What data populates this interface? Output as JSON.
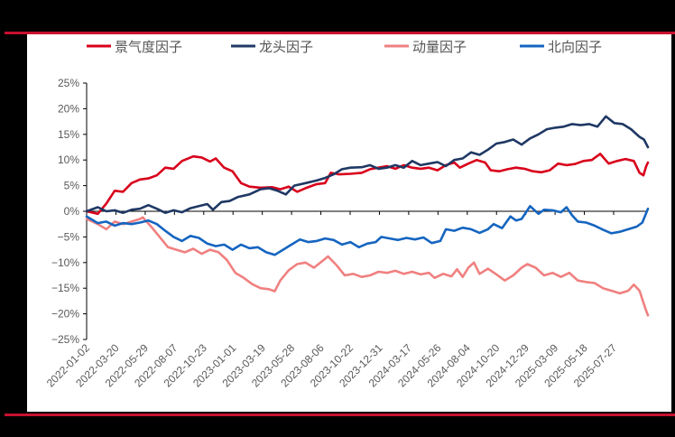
{
  "chart_data": {
    "type": "line",
    "title": "",
    "xlabel": "",
    "ylabel": "",
    "ylim": [
      -25,
      25
    ],
    "yticks": [
      "25%",
      "20%",
      "15%",
      "10%",
      "5%",
      "0%",
      "-5%",
      "-10%",
      "-15%",
      "-20%",
      "-25%"
    ],
    "xticks": [
      "2022-01-02",
      "2022-03-20",
      "2022-05-29",
      "2022-08-07",
      "2022-10-23",
      "2023-01-01",
      "2023-03-19",
      "2023-05-28",
      "2023-08-06",
      "2023-10-22",
      "2023-12-31",
      "2024-03-17",
      "2024-05-26",
      "2024-08-04",
      "2024-10-20",
      "2024-12-29",
      "2025-03-09",
      "2025-05-18",
      "2025-07-27"
    ],
    "legend_position": "top",
    "grid": false,
    "series": [
      {
        "name": "景气度因子",
        "color": "#d9001b",
        "points": [
          [
            0,
            0
          ],
          [
            0.02,
            -0.5
          ],
          [
            0.035,
            1.5
          ],
          [
            0.05,
            4
          ],
          [
            0.065,
            3.8
          ],
          [
            0.08,
            5.5
          ],
          [
            0.095,
            6.2
          ],
          [
            0.11,
            6.4
          ],
          [
            0.125,
            7
          ],
          [
            0.14,
            8.5
          ],
          [
            0.155,
            8.3
          ],
          [
            0.17,
            9.8
          ],
          [
            0.19,
            10.7
          ],
          [
            0.205,
            10.5
          ],
          [
            0.22,
            9.7
          ],
          [
            0.23,
            10.3
          ],
          [
            0.245,
            8.5
          ],
          [
            0.26,
            7.8
          ],
          [
            0.275,
            5.5
          ],
          [
            0.29,
            4.8
          ],
          [
            0.31,
            4.6
          ],
          [
            0.33,
            4.7
          ],
          [
            0.345,
            4.3
          ],
          [
            0.36,
            4.8
          ],
          [
            0.375,
            3.8
          ],
          [
            0.39,
            4.5
          ],
          [
            0.41,
            5.3
          ],
          [
            0.425,
            5.5
          ],
          [
            0.435,
            7.5
          ],
          [
            0.45,
            7.2
          ],
          [
            0.47,
            7.3
          ],
          [
            0.49,
            7.5
          ],
          [
            0.505,
            8.2
          ],
          [
            0.52,
            8.5
          ],
          [
            0.535,
            8.8
          ],
          [
            0.55,
            8.3
          ],
          [
            0.565,
            9
          ],
          [
            0.58,
            8.5
          ],
          [
            0.595,
            8.3
          ],
          [
            0.61,
            8.5
          ],
          [
            0.625,
            8
          ],
          [
            0.64,
            9
          ],
          [
            0.655,
            9.5
          ],
          [
            0.665,
            8.5
          ],
          [
            0.68,
            9.3
          ],
          [
            0.695,
            10
          ],
          [
            0.71,
            9.5
          ],
          [
            0.72,
            8
          ],
          [
            0.735,
            7.8
          ],
          [
            0.75,
            8.2
          ],
          [
            0.765,
            8.5
          ],
          [
            0.78,
            8.3
          ],
          [
            0.795,
            7.8
          ],
          [
            0.81,
            7.6
          ],
          [
            0.825,
            8
          ],
          [
            0.84,
            9.3
          ],
          [
            0.855,
            9
          ],
          [
            0.87,
            9.2
          ],
          [
            0.885,
            9.8
          ],
          [
            0.9,
            10
          ],
          [
            0.915,
            11.2
          ],
          [
            0.93,
            9.3
          ],
          [
            0.945,
            9.8
          ],
          [
            0.96,
            10.2
          ],
          [
            0.975,
            9.8
          ],
          [
            0.985,
            7.5
          ],
          [
            0.992,
            7
          ],
          [
            0.997,
            8.8
          ],
          [
            1,
            9.5
          ]
        ]
      },
      {
        "name": "龙头因子",
        "color": "#1f3864",
        "points": [
          [
            0,
            0
          ],
          [
            0.02,
            0.8
          ],
          [
            0.035,
            0
          ],
          [
            0.05,
            0.2
          ],
          [
            0.065,
            -0.3
          ],
          [
            0.08,
            0.3
          ],
          [
            0.095,
            0.5
          ],
          [
            0.11,
            1.2
          ],
          [
            0.125,
            0.5
          ],
          [
            0.14,
            -0.3
          ],
          [
            0.155,
            0.2
          ],
          [
            0.17,
            -0.2
          ],
          [
            0.185,
            0.6
          ],
          [
            0.2,
            1
          ],
          [
            0.215,
            1.4
          ],
          [
            0.225,
            0.3
          ],
          [
            0.24,
            1.8
          ],
          [
            0.255,
            2
          ],
          [
            0.27,
            2.8
          ],
          [
            0.29,
            3.3
          ],
          [
            0.31,
            4.3
          ],
          [
            0.325,
            4.5
          ],
          [
            0.34,
            4
          ],
          [
            0.355,
            3.3
          ],
          [
            0.37,
            5
          ],
          [
            0.39,
            5.5
          ],
          [
            0.41,
            6
          ],
          [
            0.425,
            6.5
          ],
          [
            0.44,
            7.2
          ],
          [
            0.455,
            8.2
          ],
          [
            0.47,
            8.5
          ],
          [
            0.49,
            8.6
          ],
          [
            0.505,
            9
          ],
          [
            0.52,
            8.3
          ],
          [
            0.535,
            8.5
          ],
          [
            0.55,
            9
          ],
          [
            0.565,
            8.5
          ],
          [
            0.58,
            9.8
          ],
          [
            0.595,
            9
          ],
          [
            0.61,
            9.3
          ],
          [
            0.625,
            9.6
          ],
          [
            0.64,
            8.8
          ],
          [
            0.655,
            10
          ],
          [
            0.67,
            10.3
          ],
          [
            0.685,
            11.5
          ],
          [
            0.7,
            11
          ],
          [
            0.715,
            12
          ],
          [
            0.73,
            13.2
          ],
          [
            0.745,
            13.5
          ],
          [
            0.76,
            14
          ],
          [
            0.775,
            13
          ],
          [
            0.79,
            14.2
          ],
          [
            0.805,
            15
          ],
          [
            0.82,
            16
          ],
          [
            0.835,
            16.3
          ],
          [
            0.85,
            16.5
          ],
          [
            0.865,
            17
          ],
          [
            0.88,
            16.8
          ],
          [
            0.895,
            17
          ],
          [
            0.91,
            16.5
          ],
          [
            0.925,
            18.5
          ],
          [
            0.94,
            17.2
          ],
          [
            0.955,
            17
          ],
          [
            0.97,
            16
          ],
          [
            0.985,
            14.5
          ],
          [
            0.993,
            14
          ],
          [
            1,
            12.5
          ]
        ]
      },
      {
        "name": "动量因子",
        "color": "#f08080",
        "points": [
          [
            0,
            -1.5
          ],
          [
            0.02,
            -2.5
          ],
          [
            0.035,
            -3.5
          ],
          [
            0.05,
            -2
          ],
          [
            0.065,
            -2.5
          ],
          [
            0.08,
            -2
          ],
          [
            0.095,
            -1.5
          ],
          [
            0.1,
            -1.2
          ],
          [
            0.115,
            -3
          ],
          [
            0.13,
            -5
          ],
          [
            0.145,
            -7
          ],
          [
            0.16,
            -7.5
          ],
          [
            0.175,
            -8
          ],
          [
            0.19,
            -7.3
          ],
          [
            0.205,
            -8.3
          ],
          [
            0.22,
            -7.5
          ],
          [
            0.235,
            -8
          ],
          [
            0.25,
            -9.5
          ],
          [
            0.265,
            -12
          ],
          [
            0.28,
            -13
          ],
          [
            0.295,
            -14.2
          ],
          [
            0.31,
            -15
          ],
          [
            0.325,
            -15.2
          ],
          [
            0.335,
            -15.6
          ],
          [
            0.345,
            -13.5
          ],
          [
            0.36,
            -11.5
          ],
          [
            0.375,
            -10.3
          ],
          [
            0.39,
            -10
          ],
          [
            0.405,
            -11
          ],
          [
            0.42,
            -9.7
          ],
          [
            0.43,
            -8.8
          ],
          [
            0.445,
            -10.5
          ],
          [
            0.46,
            -12.5
          ],
          [
            0.475,
            -12.2
          ],
          [
            0.49,
            -12.8
          ],
          [
            0.505,
            -12.5
          ],
          [
            0.52,
            -11.8
          ],
          [
            0.535,
            -12
          ],
          [
            0.55,
            -11.6
          ],
          [
            0.565,
            -12.2
          ],
          [
            0.58,
            -11.8
          ],
          [
            0.595,
            -12.3
          ],
          [
            0.61,
            -12
          ],
          [
            0.62,
            -13
          ],
          [
            0.635,
            -12.2
          ],
          [
            0.65,
            -12.7
          ],
          [
            0.66,
            -11.3
          ],
          [
            0.67,
            -12.8
          ],
          [
            0.68,
            -11
          ],
          [
            0.69,
            -10
          ],
          [
            0.7,
            -12.2
          ],
          [
            0.715,
            -11.2
          ],
          [
            0.73,
            -12.3
          ],
          [
            0.745,
            -13.5
          ],
          [
            0.76,
            -12.5
          ],
          [
            0.775,
            -11
          ],
          [
            0.785,
            -10.3
          ],
          [
            0.8,
            -11
          ],
          [
            0.815,
            -12.5
          ],
          [
            0.83,
            -12
          ],
          [
            0.845,
            -12.8
          ],
          [
            0.86,
            -12
          ],
          [
            0.875,
            -13.5
          ],
          [
            0.89,
            -13.8
          ],
          [
            0.905,
            -14
          ],
          [
            0.92,
            -15
          ],
          [
            0.935,
            -15.5
          ],
          [
            0.95,
            -16
          ],
          [
            0.965,
            -15.5
          ],
          [
            0.975,
            -14.3
          ],
          [
            0.985,
            -15.5
          ],
          [
            0.995,
            -18.8
          ],
          [
            1,
            -20.3
          ]
        ]
      },
      {
        "name": "北向因子",
        "color": "#1565c0",
        "points": [
          [
            0,
            -1
          ],
          [
            0.02,
            -2.3
          ],
          [
            0.035,
            -2
          ],
          [
            0.05,
            -2.8
          ],
          [
            0.065,
            -2.3
          ],
          [
            0.08,
            -2.5
          ],
          [
            0.095,
            -2.2
          ],
          [
            0.11,
            -1.8
          ],
          [
            0.125,
            -2.5
          ],
          [
            0.14,
            -3.8
          ],
          [
            0.155,
            -5
          ],
          [
            0.17,
            -5.8
          ],
          [
            0.185,
            -4.8
          ],
          [
            0.2,
            -5.2
          ],
          [
            0.215,
            -6.3
          ],
          [
            0.23,
            -6.8
          ],
          [
            0.245,
            -6.5
          ],
          [
            0.26,
            -7.5
          ],
          [
            0.275,
            -6.5
          ],
          [
            0.29,
            -7.2
          ],
          [
            0.305,
            -7
          ],
          [
            0.32,
            -8
          ],
          [
            0.335,
            -8.5
          ],
          [
            0.35,
            -7.5
          ],
          [
            0.365,
            -6.5
          ],
          [
            0.38,
            -5.5
          ],
          [
            0.395,
            -6
          ],
          [
            0.41,
            -5.8
          ],
          [
            0.425,
            -5.3
          ],
          [
            0.44,
            -5.6
          ],
          [
            0.455,
            -6.5
          ],
          [
            0.47,
            -6
          ],
          [
            0.485,
            -7
          ],
          [
            0.5,
            -6.3
          ],
          [
            0.515,
            -6
          ],
          [
            0.525,
            -5
          ],
          [
            0.54,
            -5.3
          ],
          [
            0.555,
            -5.6
          ],
          [
            0.57,
            -5.2
          ],
          [
            0.585,
            -5.5
          ],
          [
            0.6,
            -5.1
          ],
          [
            0.615,
            -6.2
          ],
          [
            0.63,
            -5.8
          ],
          [
            0.64,
            -3.5
          ],
          [
            0.655,
            -3.8
          ],
          [
            0.67,
            -3.2
          ],
          [
            0.685,
            -3.5
          ],
          [
            0.7,
            -4.2
          ],
          [
            0.715,
            -3.5
          ],
          [
            0.725,
            -2.5
          ],
          [
            0.74,
            -3.3
          ],
          [
            0.755,
            -1
          ],
          [
            0.765,
            -1.8
          ],
          [
            0.775,
            -1.5
          ],
          [
            0.79,
            1
          ],
          [
            0.805,
            -0.5
          ],
          [
            0.815,
            0.3
          ],
          [
            0.83,
            0.2
          ],
          [
            0.845,
            -0.2
          ],
          [
            0.855,
            0.8
          ],
          [
            0.865,
            -0.8
          ],
          [
            0.875,
            -2
          ],
          [
            0.89,
            -2.2
          ],
          [
            0.905,
            -2.8
          ],
          [
            0.92,
            -3.6
          ],
          [
            0.935,
            -4.3
          ],
          [
            0.95,
            -4
          ],
          [
            0.965,
            -3.5
          ],
          [
            0.98,
            -3
          ],
          [
            0.99,
            -2.2
          ],
          [
            1,
            0.5
          ]
        ]
      }
    ]
  },
  "legend": {
    "items": [
      {
        "label": "景气度因子",
        "color": "#d9001b"
      },
      {
        "label": "龙头因子",
        "color": "#1f3864"
      },
      {
        "label": "动量因子",
        "color": "#f08080"
      },
      {
        "label": "北向因子",
        "color": "#1565c0"
      }
    ]
  },
  "colors": {
    "frame_rule": "#c8102e",
    "background": "#000000",
    "panel": "#ffffff",
    "axis": "#000000",
    "tick_text": "#595959"
  }
}
